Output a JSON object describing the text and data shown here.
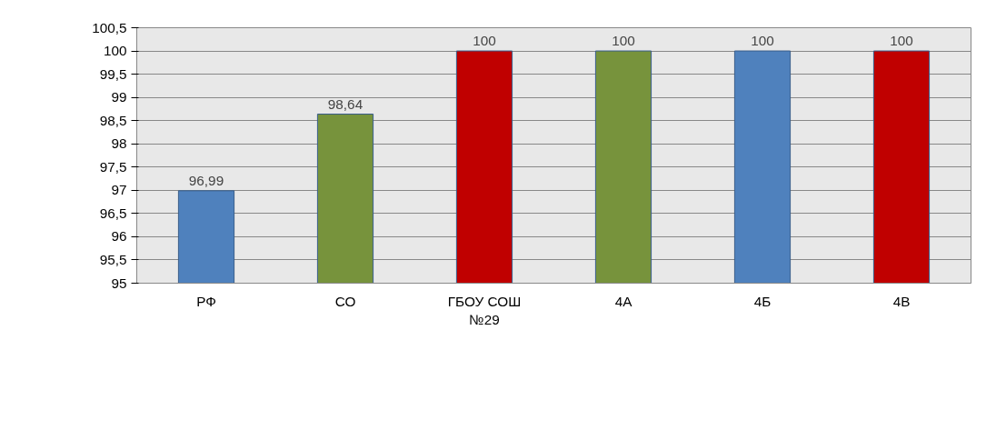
{
  "chart_data": {
    "type": "bar",
    "categories": [
      "РФ",
      "СО",
      "ГБОУ СОШ\n№29",
      "4А",
      "4Б",
      "4В"
    ],
    "values": [
      96.99,
      98.64,
      100,
      100,
      100,
      100
    ],
    "colors": [
      "#4f81bd",
      "#77933c",
      "#c00000",
      "#77933c",
      "#4f81bd",
      "#c00000"
    ],
    "value_labels": [
      "96,99",
      "98,64",
      "100",
      "100",
      "100",
      "100"
    ],
    "ylim": [
      95,
      100.5
    ],
    "yticks": [
      95,
      {
        "value": 95.5,
        "label": "95,5"
      },
      96,
      {
        "value": 96.5,
        "label": "96,5"
      },
      97,
      {
        "value": 97.5,
        "label": "97,5"
      },
      98,
      {
        "value": 98.5,
        "label": "98,5"
      },
      99,
      {
        "value": 99.5,
        "label": "99,5"
      },
      100,
      {
        "value": 100.5,
        "label": "100,5"
      }
    ],
    "grid": "y"
  }
}
